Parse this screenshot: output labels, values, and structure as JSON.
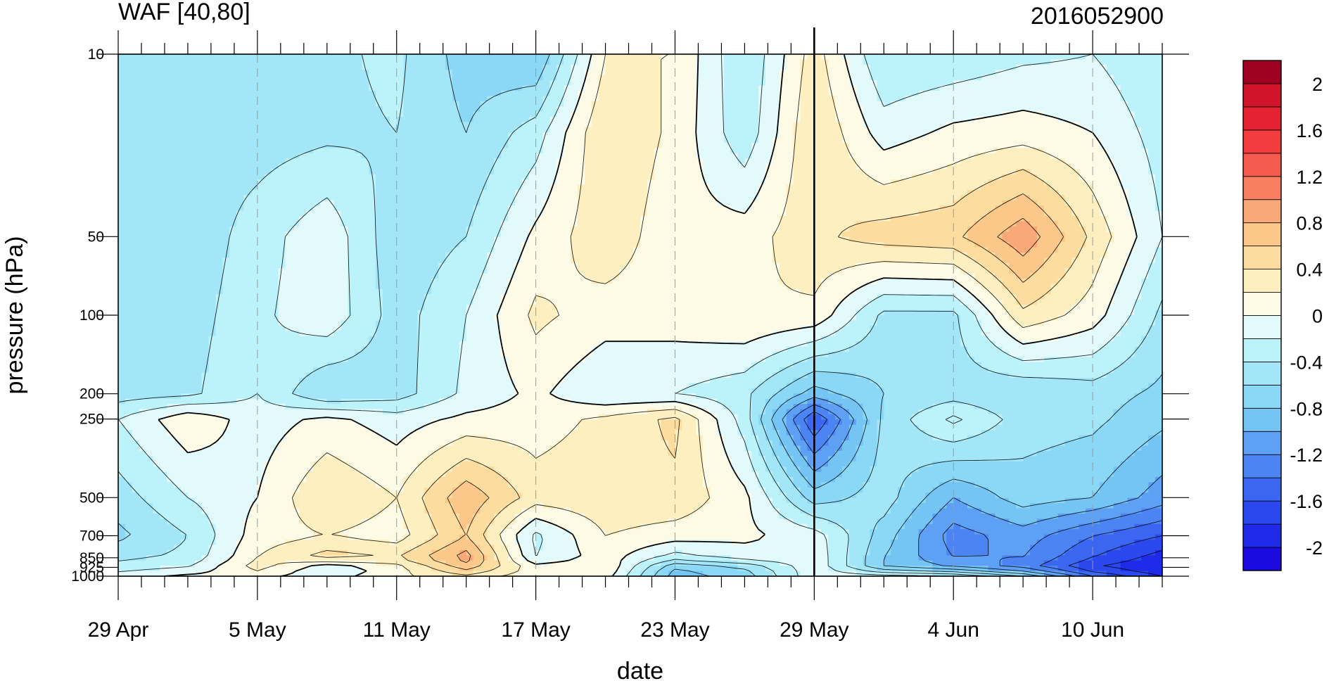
{
  "chart_data": {
    "type": "heatmap",
    "title": "WAF [40,80]",
    "subtitle": "2016052900",
    "xlabel": "date",
    "ylabel": "pressure (hPa)",
    "x_tick_labels": [
      "29 Apr",
      "5 May",
      "11 May",
      "17 May",
      "23 May",
      "29 May",
      "4 Jun",
      "10 Jun"
    ],
    "x_tick_days": [
      0,
      6,
      12,
      18,
      24,
      30,
      36,
      42
    ],
    "x_range_days": [
      0,
      45
    ],
    "marker_day": 30,
    "y_scale": "log",
    "y_range": [
      10,
      1000
    ],
    "y_ticks": [
      10,
      50,
      100,
      200,
      250,
      500,
      700,
      850,
      925,
      1000
    ],
    "colorbar": {
      "labels": [
        "2",
        "1.6",
        "1.2",
        "0.8",
        "0.4",
        "0",
        "-0.4",
        "-0.8",
        "-1.2",
        "-1.6",
        "-2"
      ],
      "levels": [
        -2.2,
        -2,
        -1.8,
        -1.6,
        -1.4,
        -1.2,
        -1,
        -0.8,
        -0.6,
        -0.4,
        -0.2,
        0,
        0.2,
        0.4,
        0.6,
        0.8,
        1,
        1.2,
        1.4,
        1.6,
        1.8,
        2,
        2.2
      ],
      "colors": [
        "#1a0ae0",
        "#1e2ae8",
        "#2a48ee",
        "#3a66f2",
        "#4c84f4",
        "#5ea0f4",
        "#74c4f4",
        "#8ad8f6",
        "#a2e6f8",
        "#bcf2fa",
        "#e2fafc",
        "#fdfbe6",
        "#fdefc0",
        "#fddca0",
        "#fbc88a",
        "#f9a878",
        "#f77e5e",
        "#f55a4e",
        "#f33c3e",
        "#e42232",
        "#d0142a",
        "#a00020"
      ]
    },
    "field_days": [
      0,
      3,
      6,
      9,
      12,
      15,
      18,
      21,
      24,
      27,
      30,
      33,
      36,
      39,
      42,
      45
    ],
    "field_pressures": [
      10,
      20,
      50,
      100,
      200,
      250,
      500,
      700,
      850,
      925,
      1000
    ],
    "values": [
      [
        -0.5,
        -0.55,
        -0.4,
        -0.45,
        -0.35,
        -0.7,
        -0.8,
        0.2,
        0.2,
        -0.4,
        0.3,
        -0.4,
        -0.35,
        -0.25,
        -0.2,
        -0.4
      ],
      [
        -0.6,
        -0.5,
        -0.5,
        -0.45,
        -0.4,
        -0.6,
        -0.3,
        0.4,
        0.15,
        -0.35,
        0.4,
        -0.1,
        0.05,
        0.1,
        0.0,
        -0.3
      ],
      [
        -0.5,
        -0.55,
        -0.3,
        -0.05,
        -0.55,
        -0.4,
        0.05,
        0.35,
        0.05,
        0.1,
        0.35,
        0.5,
        0.55,
        0.95,
        0.35,
        -0.2
      ],
      [
        -0.55,
        -0.5,
        -0.25,
        -0.05,
        -0.5,
        -0.2,
        0.25,
        0.1,
        0.1,
        0.2,
        0.15,
        -0.45,
        -0.45,
        0.35,
        0.1,
        -0.45
      ],
      [
        -0.5,
        -0.45,
        -0.2,
        -0.6,
        -0.5,
        -0.15,
        0.05,
        -0.2,
        -0.2,
        -0.35,
        -0.9,
        -0.6,
        -0.5,
        -0.6,
        -0.5,
        -0.65
      ],
      [
        -0.2,
        0.15,
        -0.1,
        0.05,
        -0.1,
        0.05,
        0.1,
        0.25,
        0.45,
        -0.3,
        -1.6,
        -0.55,
        -0.15,
        -0.5,
        -0.55,
        -0.75
      ],
      [
        -0.5,
        -0.2,
        0.0,
        0.4,
        0.2,
        0.75,
        0.3,
        0.35,
        0.35,
        0.05,
        -0.7,
        -0.5,
        -1.0,
        -0.7,
        -0.8,
        -1.1
      ],
      [
        -0.65,
        -0.4,
        0.1,
        0.2,
        0.1,
        0.6,
        -0.25,
        0.2,
        0.1,
        0.05,
        -0.1,
        -0.7,
        -1.3,
        -1.1,
        -1.4,
        -1.6
      ],
      [
        -0.45,
        -0.35,
        0.2,
        0.5,
        0.4,
        0.9,
        -0.2,
        0.1,
        -0.3,
        -0.1,
        -0.05,
        -0.8,
        -1.2,
        -1.2,
        -1.6,
        -1.9
      ],
      [
        -0.3,
        -0.2,
        0.3,
        -0.2,
        0.1,
        0.7,
        0.1,
        0.2,
        -0.8,
        -0.6,
        -0.05,
        -0.8,
        -1.0,
        -1.3,
        -1.8,
        -2.0
      ],
      [
        -0.1,
        0.05,
        0.05,
        -0.1,
        0.15,
        0.35,
        0.05,
        0.1,
        -0.9,
        -0.7,
        -0.05,
        -0.1,
        -0.2,
        -0.6,
        -1.4,
        -1.8
      ]
    ]
  }
}
